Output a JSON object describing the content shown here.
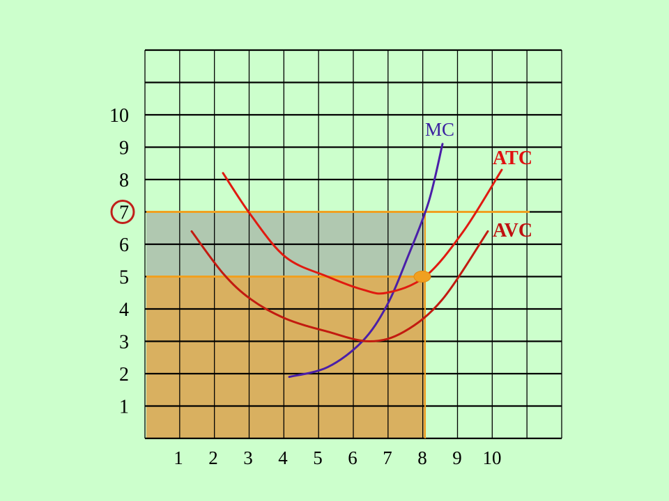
{
  "chart_data": {
    "type": "line",
    "title": "",
    "xlabel": "",
    "ylabel": "",
    "x_ticks": [
      "1",
      "2",
      "3",
      "4",
      "5",
      "6",
      "7",
      "8",
      "9",
      "10"
    ],
    "y_ticks": [
      "1",
      "2",
      "3",
      "4",
      "5",
      "6",
      "7",
      "8",
      "9",
      "10"
    ],
    "grid": true,
    "series": [
      {
        "name": "MC",
        "color": "#4a1fa8",
        "points": [
          [
            4.1,
            1.9
          ],
          [
            5.2,
            2.2
          ],
          [
            6.2,
            3.0
          ],
          [
            6.9,
            4.1
          ],
          [
            7.5,
            5.6
          ],
          [
            8.1,
            7.3
          ],
          [
            8.5,
            9.1
          ]
        ]
      },
      {
        "name": "ATC",
        "color": "#e01a10",
        "points": [
          [
            2.2,
            8.2
          ],
          [
            3.0,
            6.9
          ],
          [
            4.0,
            5.6
          ],
          [
            5.2,
            5.0
          ],
          [
            6.2,
            4.6
          ],
          [
            6.9,
            4.5
          ],
          [
            8.0,
            5.0
          ],
          [
            9.1,
            6.4
          ],
          [
            10.2,
            8.3
          ]
        ]
      },
      {
        "name": "AVC",
        "color": "#c21a10",
        "points": [
          [
            1.3,
            6.4
          ],
          [
            2.2,
            5.1
          ],
          [
            3.0,
            4.3
          ],
          [
            4.0,
            3.7
          ],
          [
            5.2,
            3.3
          ],
          [
            6.4,
            3.0
          ],
          [
            7.4,
            3.3
          ],
          [
            8.5,
            4.3
          ],
          [
            9.8,
            6.4
          ]
        ]
      }
    ],
    "highlighted_y_tick": "7",
    "price_level": 7,
    "atc_level": 5,
    "quantity": 8,
    "marked_point": [
      8,
      5
    ],
    "regions": [
      {
        "from_y": 0,
        "to_y": 5,
        "to_x": 8,
        "color": "#d9b060"
      },
      {
        "from_y": 5,
        "to_y": 7,
        "to_x": 8,
        "color": "#b0c8b0"
      }
    ],
    "colors": {
      "background": "#ccffcc",
      "price_line": "#f0a020",
      "atc_line": "#f0a020",
      "marker": "#f0a020",
      "highlight_circle": "#c0201a"
    }
  }
}
